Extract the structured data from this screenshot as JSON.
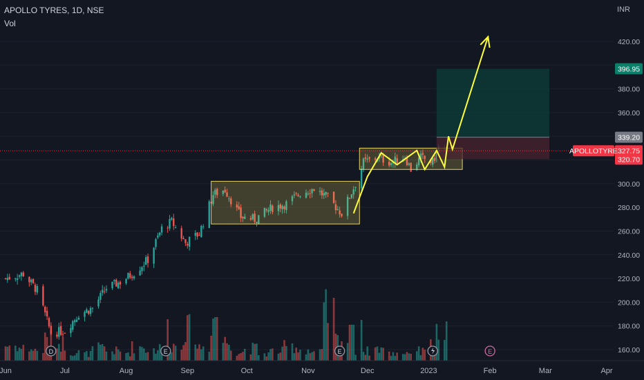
{
  "header": {
    "symbol_title": "APOLLO TYRES, 1D, NSE",
    "volume_label": "Vol",
    "currency": "INR"
  },
  "price_axis": {
    "ticks": [
      "420.00",
      "400.00",
      "380.00",
      "360.00",
      "340.00",
      "320.00",
      "300.00",
      "280.00",
      "260.00",
      "240.00",
      "220.00",
      "200.00",
      "180.00",
      "160.00"
    ],
    "target_badge": "396.95",
    "entry_badge": "339.20",
    "stop_badge": "320.70",
    "symbol_badge": "APOLLOTYRE",
    "last_price_badge": "327.75"
  },
  "time_axis": {
    "labels": [
      "Jun",
      "Jul",
      "Aug",
      "Sep",
      "Oct",
      "Nov",
      "Dec",
      "2023",
      "Feb",
      "Mar",
      "Apr"
    ]
  },
  "event_markers": [
    "D",
    "E",
    "E",
    "E"
  ],
  "colors": {
    "background": "#131722",
    "up": "#26a69a",
    "down": "#ef5350",
    "box": "#e6d35a",
    "projection": "#ffff3b",
    "target_zone": "#0d3d3a",
    "stop_zone": "#4a2430",
    "last_price_line": "#f23645"
  },
  "chart_data": {
    "type": "candlestick",
    "y_unit": "INR",
    "ylim": [
      155,
      432
    ],
    "x_range": [
      "2022-06-01",
      "2023-04-01"
    ],
    "price_path": [
      [
        "2022-06-01",
        220
      ],
      [
        "2022-06-10",
        224
      ],
      [
        "2022-06-17",
        210
      ],
      [
        "2022-06-24",
        174
      ],
      [
        "2022-07-01",
        176
      ],
      [
        "2022-07-08",
        190
      ],
      [
        "2022-07-15",
        195
      ],
      [
        "2022-07-22",
        212
      ],
      [
        "2022-07-29",
        217
      ],
      [
        "2022-08-05",
        225
      ],
      [
        "2022-08-12",
        236
      ],
      [
        "2022-08-19",
        262
      ],
      [
        "2022-08-24",
        268
      ],
      [
        "2022-08-31",
        250
      ],
      [
        "2022-09-07",
        258
      ],
      [
        "2022-09-14",
        291
      ],
      [
        "2022-09-20",
        295
      ],
      [
        "2022-09-28",
        272
      ],
      [
        "2022-10-05",
        270
      ],
      [
        "2022-10-14",
        280
      ],
      [
        "2022-10-21",
        283
      ],
      [
        "2022-10-28",
        292
      ],
      [
        "2022-11-04",
        296
      ],
      [
        "2022-11-11",
        288
      ],
      [
        "2022-11-18",
        275
      ],
      [
        "2022-11-25",
        300
      ],
      [
        "2022-11-29",
        318
      ],
      [
        "2022-12-06",
        322
      ],
      [
        "2022-12-13",
        318
      ],
      [
        "2022-12-20",
        323
      ],
      [
        "2022-12-23",
        312
      ],
      [
        "2022-12-28",
        322
      ],
      [
        "2023-01-03",
        318
      ],
      [
        "2023-01-06",
        330
      ],
      [
        "2023-01-10",
        327.75
      ]
    ],
    "volume_path": [
      22,
      18,
      15,
      30,
      25,
      12,
      10,
      18,
      14,
      12,
      20,
      16,
      18,
      22,
      45,
      20,
      60,
      28,
      12,
      18,
      10,
      14,
      20,
      16,
      12,
      70,
      30,
      15,
      14,
      18,
      10,
      12,
      14,
      22,
      40
    ],
    "volume_spikes": [
      [
        "2022-08-21",
        60
      ],
      [
        "2022-09-16",
        63
      ],
      [
        "2022-11-23",
        52
      ],
      [
        "2022-11-27",
        59
      ],
      [
        "2023-01-08",
        30
      ]
    ],
    "consolidation_boxes": [
      {
        "from": "2022-09-13",
        "to": "2022-11-27",
        "low": 266,
        "high": 302
      },
      {
        "from": "2022-11-27",
        "to": "2023-01-18",
        "low": 312,
        "high": 330
      }
    ],
    "position": {
      "from": "2023-01-05",
      "to": "2023-03-03",
      "target": 396.95,
      "entry": 339.2,
      "stop": 320.7
    },
    "projection_path": [
      [
        "2022-11-24",
        275
      ],
      [
        "2022-12-01",
        306
      ],
      [
        "2022-12-08",
        326
      ],
      [
        "2022-12-16",
        316
      ],
      [
        "2022-12-26",
        328
      ],
      [
        "2022-12-30",
        312
      ],
      [
        "2023-01-05",
        328
      ],
      [
        "2023-01-09",
        314
      ],
      [
        "2023-01-11",
        340
      ],
      [
        "2023-01-13",
        329
      ],
      [
        "2023-01-31",
        424
      ]
    ],
    "last_price": 327.75,
    "markers": [
      {
        "label": "D",
        "date": "2022-06-24"
      },
      {
        "label": "E",
        "date": "2022-08-21"
      },
      {
        "label": "E",
        "date": "2022-11-17"
      },
      {
        "label": "E",
        "date": "2023-02-01"
      }
    ]
  }
}
